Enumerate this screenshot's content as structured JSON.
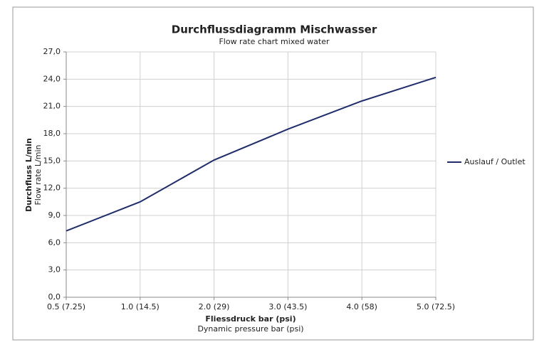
{
  "chart_data": {
    "type": "line",
    "title": "Durchflussdiagramm Mischwasser",
    "subtitle": "Flow rate chart mixed water",
    "y_label": [
      "Durchfluss L/min",
      "Flow rate L/min"
    ],
    "x_label": [
      "Fliessdruck bar (psi)",
      "Dynamic pressure bar (psi)"
    ],
    "categories": [
      "0.5 (7.25)",
      "1.0 (14.5)",
      "2.0 (29)",
      "3.0 (43.5)",
      "4.0 (58)",
      "5.0 (72.5)"
    ],
    "series": [
      {
        "name": "Auslauf / Outlet",
        "color": "#1f2d6b",
        "values": [
          7.3,
          10.5,
          15.1,
          18.5,
          21.6,
          24.2
        ]
      }
    ],
    "ylim": [
      0,
      27
    ],
    "yticks": [
      {
        "value": 0,
        "label": "0,0"
      },
      {
        "value": 3,
        "label": "3,0"
      },
      {
        "value": 6,
        "label": "6,0"
      },
      {
        "value": 9,
        "label": "9,0"
      },
      {
        "value": 12,
        "label": "12,0"
      },
      {
        "value": 15,
        "label": "15,0"
      },
      {
        "value": 18,
        "label": "18,0"
      },
      {
        "value": 21,
        "label": "21,0"
      },
      {
        "value": 24,
        "label": "24,0"
      },
      {
        "value": 27,
        "label": "27,0"
      }
    ],
    "grid": true,
    "legend": "right"
  }
}
